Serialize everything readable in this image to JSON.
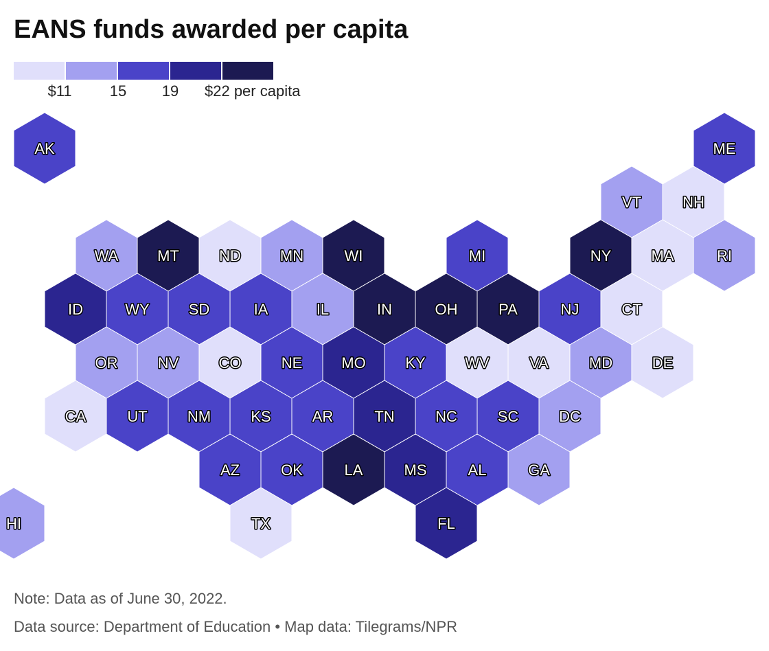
{
  "title": "EANS funds awarded per capita",
  "legend": {
    "colors": [
      "#e0dffb",
      "#a3a0f0",
      "#4a43c8",
      "#2b2590",
      "#1c1a52"
    ],
    "labels": [
      "$11",
      "15",
      "19",
      "$22 per capita"
    ]
  },
  "states": [
    {
      "abbr": "AK",
      "col": 0,
      "row": 0,
      "bin": 2
    },
    {
      "abbr": "ME",
      "col": 11,
      "row": 0,
      "bin": 2
    },
    {
      "abbr": "VT",
      "col": 10,
      "row": 1,
      "bin": 1
    },
    {
      "abbr": "NH",
      "col": 11,
      "row": 1,
      "bin": 0
    },
    {
      "abbr": "WA",
      "col": 1,
      "row": 2,
      "bin": 1
    },
    {
      "abbr": "MT",
      "col": 2,
      "row": 2,
      "bin": 4
    },
    {
      "abbr": "ND",
      "col": 3,
      "row": 2,
      "bin": 0
    },
    {
      "abbr": "MN",
      "col": 4,
      "row": 2,
      "bin": 1
    },
    {
      "abbr": "WI",
      "col": 5,
      "row": 2,
      "bin": 4
    },
    {
      "abbr": "MI",
      "col": 7,
      "row": 2,
      "bin": 2
    },
    {
      "abbr": "NY",
      "col": 9,
      "row": 2,
      "bin": 4
    },
    {
      "abbr": "MA",
      "col": 10,
      "row": 2,
      "bin": 0
    },
    {
      "abbr": "RI",
      "col": 11,
      "row": 2,
      "bin": 1
    },
    {
      "abbr": "ID",
      "col": 1,
      "row": 3,
      "bin": 3
    },
    {
      "abbr": "WY",
      "col": 2,
      "row": 3,
      "bin": 2
    },
    {
      "abbr": "SD",
      "col": 3,
      "row": 3,
      "bin": 2
    },
    {
      "abbr": "IA",
      "col": 4,
      "row": 3,
      "bin": 2
    },
    {
      "abbr": "IL",
      "col": 5,
      "row": 3,
      "bin": 1
    },
    {
      "abbr": "IN",
      "col": 6,
      "row": 3,
      "bin": 4
    },
    {
      "abbr": "OH",
      "col": 7,
      "row": 3,
      "bin": 4
    },
    {
      "abbr": "PA",
      "col": 8,
      "row": 3,
      "bin": 4
    },
    {
      "abbr": "NJ",
      "col": 9,
      "row": 3,
      "bin": 2
    },
    {
      "abbr": "CT",
      "col": 10,
      "row": 3,
      "bin": 0
    },
    {
      "abbr": "OR",
      "col": 1,
      "row": 4,
      "bin": 1
    },
    {
      "abbr": "NV",
      "col": 2,
      "row": 4,
      "bin": 1
    },
    {
      "abbr": "CO",
      "col": 3,
      "row": 4,
      "bin": 0
    },
    {
      "abbr": "NE",
      "col": 4,
      "row": 4,
      "bin": 2
    },
    {
      "abbr": "MO",
      "col": 5,
      "row": 4,
      "bin": 3
    },
    {
      "abbr": "KY",
      "col": 6,
      "row": 4,
      "bin": 2
    },
    {
      "abbr": "WV",
      "col": 7,
      "row": 4,
      "bin": 0
    },
    {
      "abbr": "VA",
      "col": 8,
      "row": 4,
      "bin": 0
    },
    {
      "abbr": "MD",
      "col": 9,
      "row": 4,
      "bin": 1
    },
    {
      "abbr": "DE",
      "col": 10,
      "row": 4,
      "bin": 0
    },
    {
      "abbr": "CA",
      "col": 1,
      "row": 5,
      "bin": 0
    },
    {
      "abbr": "UT",
      "col": 2,
      "row": 5,
      "bin": 2
    },
    {
      "abbr": "NM",
      "col": 3,
      "row": 5,
      "bin": 2
    },
    {
      "abbr": "KS",
      "col": 4,
      "row": 5,
      "bin": 2
    },
    {
      "abbr": "AR",
      "col": 5,
      "row": 5,
      "bin": 2
    },
    {
      "abbr": "TN",
      "col": 6,
      "row": 5,
      "bin": 3
    },
    {
      "abbr": "NC",
      "col": 7,
      "row": 5,
      "bin": 2
    },
    {
      "abbr": "SC",
      "col": 8,
      "row": 5,
      "bin": 2
    },
    {
      "abbr": "DC",
      "col": 9,
      "row": 5,
      "bin": 1
    },
    {
      "abbr": "AZ",
      "col": 3,
      "row": 6,
      "bin": 2
    },
    {
      "abbr": "OK",
      "col": 4,
      "row": 6,
      "bin": 2
    },
    {
      "abbr": "LA",
      "col": 5,
      "row": 6,
      "bin": 4
    },
    {
      "abbr": "MS",
      "col": 6,
      "row": 6,
      "bin": 3
    },
    {
      "abbr": "AL",
      "col": 7,
      "row": 6,
      "bin": 2
    },
    {
      "abbr": "GA",
      "col": 8,
      "row": 6,
      "bin": 1
    },
    {
      "abbr": "HI",
      "col": 0,
      "row": 7,
      "bin": 1
    },
    {
      "abbr": "TX",
      "col": 4,
      "row": 7,
      "bin": 0
    },
    {
      "abbr": "FL",
      "col": 7,
      "row": 7,
      "bin": 3
    }
  ],
  "note": "Note: Data as of June 30, 2022.",
  "source": "Data source: Department of Education • Map data: Tilegrams/NPR"
}
